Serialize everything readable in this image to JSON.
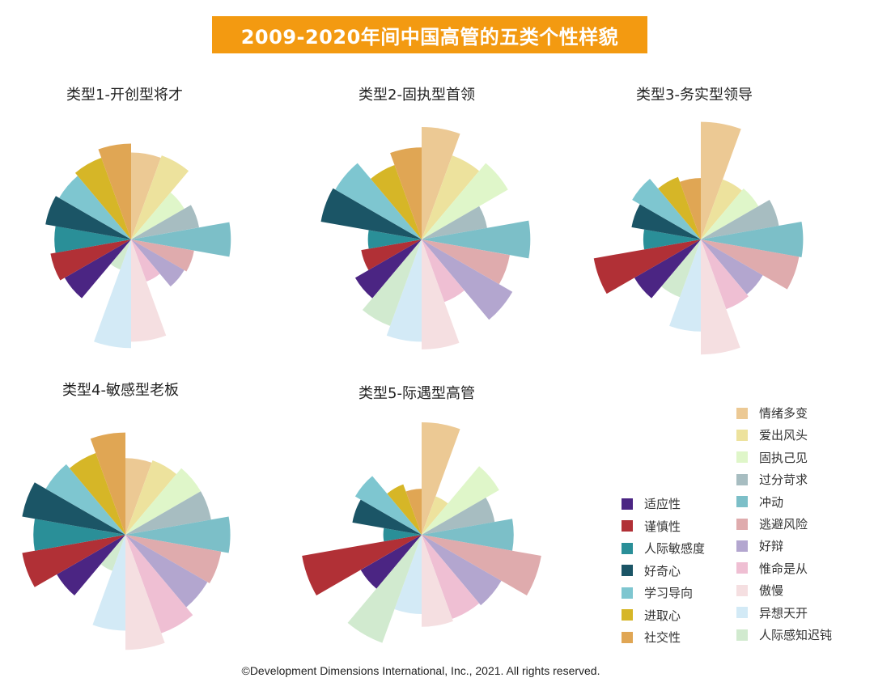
{
  "title": "2009-2020年间中国高管的五类个性样貌",
  "copyright": "©Development Dimensions International, Inc., 2021. All rights reserved.",
  "legend_left": [
    {
      "label": "适应性",
      "color": "#4b2583"
    },
    {
      "label": "谨慎性",
      "color": "#b13036"
    },
    {
      "label": "人际敏感度",
      "color": "#2a8f98"
    },
    {
      "label": "好奇心",
      "color": "#1b5566"
    },
    {
      "label": "学习导向",
      "color": "#7ec6d0"
    },
    {
      "label": "进取心",
      "color": "#d6b627"
    },
    {
      "label": "社交性",
      "color": "#e0a654"
    }
  ],
  "legend_right": [
    {
      "label": "情绪多变",
      "color": "#ecc994"
    },
    {
      "label": "爱出风头",
      "color": "#ede29d"
    },
    {
      "label": "固执己见",
      "color": "#dff6c9"
    },
    {
      "label": "过分苛求",
      "color": "#a7bdc1"
    },
    {
      "label": "冲动",
      "color": "#7cbfc8"
    },
    {
      "label": "逃避风险",
      "color": "#dfabad"
    },
    {
      "label": "好辩",
      "color": "#b3a6cf"
    },
    {
      "label": "惟命是从",
      "color": "#efbfd3"
    },
    {
      "label": "傲慢",
      "color": "#f5dfe1"
    },
    {
      "label": "异想天开",
      "color": "#d3eaf6"
    },
    {
      "label": "人际感知迟钝",
      "color": "#d1eacf"
    }
  ],
  "chart_data": [
    {
      "type": "rose",
      "title": "类型1-开创型将才",
      "categories": [
        "情绪多变",
        "爱出风头",
        "固执己见",
        "过分苛求",
        "冲动",
        "逃避风险",
        "好辩",
        "惟命是从",
        "傲慢",
        "异想天开",
        "人际感知迟钝",
        "适应性",
        "谨慎性",
        "人际敏感度",
        "好奇心",
        "学习导向",
        "进取心",
        "社交性"
      ],
      "values": [
        68,
        70,
        48,
        54,
        78,
        50,
        48,
        35,
        80,
        85,
        25,
        60,
        64,
        60,
        68,
        65,
        68,
        75
      ]
    },
    {
      "type": "rose",
      "title": "类型2-固执型首领",
      "categories": [
        "情绪多变",
        "爱出风头",
        "固执己见",
        "过分苛求",
        "冲动",
        "逃避风险",
        "好辩",
        "惟命是从",
        "傲慢",
        "异想天开",
        "人际感知迟钝",
        "适应性",
        "谨慎性",
        "人际敏感度",
        "好奇心",
        "学习导向",
        "进取心",
        "社交性"
      ],
      "values": [
        88,
        70,
        78,
        52,
        85,
        70,
        82,
        52,
        86,
        80,
        72,
        60,
        48,
        42,
        80,
        78,
        62,
        72
      ]
    },
    {
      "type": "rose",
      "title": "类型3-务实型领导",
      "categories": [
        "情绪多变",
        "爱出风头",
        "固执己见",
        "过分苛求",
        "冲动",
        "逃避风险",
        "好辩",
        "惟命是从",
        "傲慢",
        "异想天开",
        "人际感知迟钝",
        "适应性",
        "谨慎性",
        "人际敏感度",
        "好奇心",
        "学习导向",
        "进取心",
        "社交性"
      ],
      "values": [
        92,
        50,
        52,
        62,
        80,
        78,
        56,
        58,
        90,
        72,
        48,
        60,
        85,
        45,
        55,
        62,
        52,
        48
      ]
    },
    {
      "type": "rose",
      "title": "类型4-敏感型老板",
      "categories": [
        "情绪多变",
        "爱出风头",
        "固执己见",
        "过分苛求",
        "冲动",
        "逃避风险",
        "好辩",
        "惟命是从",
        "傲慢",
        "异想天开",
        "人际感知迟钝",
        "适应性",
        "谨慎性",
        "人际敏感度",
        "好奇心",
        "学习导向",
        "进取心",
        "社交性"
      ],
      "values": [
        60,
        62,
        68,
        68,
        82,
        76,
        74,
        82,
        90,
        75,
        30,
        62,
        82,
        72,
        82,
        72,
        68,
        80
      ]
    },
    {
      "type": "rose",
      "title": "类型5-际遇型高管",
      "categories": [
        "情绪多变",
        "爱出风头",
        "固执己见",
        "过分苛求",
        "冲动",
        "逃避风险",
        "好辩",
        "惟命是从",
        "傲慢",
        "异想天开",
        "人际感知迟钝",
        "适应性",
        "谨慎性",
        "人际敏感度",
        "好奇心",
        "学习导向",
        "进取心",
        "社交性"
      ],
      "values": [
        88,
        32,
        70,
        58,
        72,
        95,
        72,
        70,
        72,
        62,
        90,
        55,
        95,
        30,
        55,
        60,
        42,
        36
      ]
    }
  ]
}
